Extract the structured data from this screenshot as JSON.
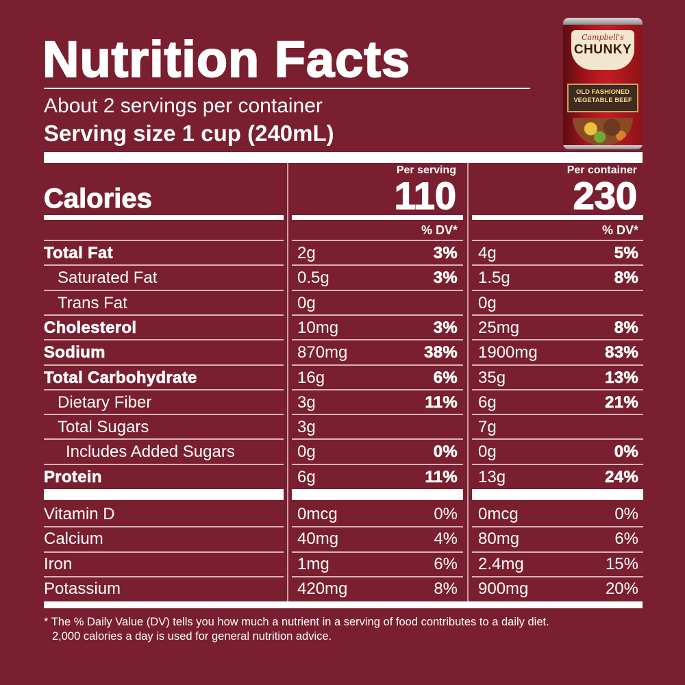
{
  "title": "Nutrition Facts",
  "servings": "About 2 servings per container",
  "serving_size": "Serving size  1 cup (240mL)",
  "product_image": {
    "brand_script": "Campbell's",
    "brand": "CHUNKY",
    "variety": "OLD FASHIONED VEGETABLE BEEF"
  },
  "calories": {
    "label": "Calories",
    "per_serving_label": "Per serving",
    "per_container_label": "Per container",
    "per_serving": "110",
    "per_container": "230"
  },
  "dv_header": "% DV*",
  "nutrients": [
    {
      "name": "Total Fat",
      "style": "heavy",
      "indent": 0,
      "s_amt": "2g",
      "s_dv": "3%",
      "c_amt": "4g",
      "c_dv": "5%"
    },
    {
      "name": "Saturated Fat",
      "style": "normal",
      "indent": 1,
      "s_amt": "0.5g",
      "s_dv": "3%",
      "c_amt": "1.5g",
      "c_dv": "8%"
    },
    {
      "name": "Trans Fat",
      "style": "normal",
      "indent": 1,
      "s_amt": "0g",
      "s_dv": "",
      "c_amt": "0g",
      "c_dv": ""
    },
    {
      "name": "Cholesterol",
      "style": "heavy",
      "indent": 0,
      "s_amt": "10mg",
      "s_dv": "3%",
      "c_amt": "25mg",
      "c_dv": "8%"
    },
    {
      "name": "Sodium",
      "style": "heavy",
      "indent": 0,
      "s_amt": "870mg",
      "s_dv": "38%",
      "c_amt": "1900mg",
      "c_dv": "83%"
    },
    {
      "name": "Total Carbohydrate",
      "style": "heavy",
      "indent": 0,
      "s_amt": "16g",
      "s_dv": "6%",
      "c_amt": "35g",
      "c_dv": "13%"
    },
    {
      "name": "Dietary Fiber",
      "style": "normal",
      "indent": 1,
      "s_amt": "3g",
      "s_dv": "11%",
      "c_amt": "6g",
      "c_dv": "21%"
    },
    {
      "name": "Total Sugars",
      "style": "normal",
      "indent": 1,
      "s_amt": "3g",
      "s_dv": "",
      "c_amt": "7g",
      "c_dv": ""
    },
    {
      "name": "Includes Added Sugars",
      "style": "normal",
      "indent": 2,
      "s_amt": "0g",
      "s_dv": "0%",
      "c_amt": "0g",
      "c_dv": "0%"
    },
    {
      "name": "Protein",
      "style": "heavy",
      "indent": 0,
      "s_amt": "6g",
      "s_dv": "11%",
      "c_amt": "13g",
      "c_dv": "24%"
    }
  ],
  "vitamins": [
    {
      "name": "Vitamin D",
      "s_amt": "0mcg",
      "s_dv": "0%",
      "c_amt": "0mcg",
      "c_dv": "0%"
    },
    {
      "name": "Calcium",
      "s_amt": "40mg",
      "s_dv": "4%",
      "c_amt": "80mg",
      "c_dv": "6%"
    },
    {
      "name": "Iron",
      "s_amt": "1mg",
      "s_dv": "6%",
      "c_amt": "2.4mg",
      "c_dv": "15%"
    },
    {
      "name": "Potassium",
      "s_amt": "420mg",
      "s_dv": "8%",
      "c_amt": "900mg",
      "c_dv": "20%"
    }
  ],
  "footnote_line1": "* The % Daily Value (DV) tells you how much a nutrient in a serving of food contributes to a daily diet.",
  "footnote_line2": "2,000 calories a day is used for general nutrition advice.",
  "colors": {
    "background": "#7a1f2f",
    "text": "#ffffff",
    "rule": "#ffffff"
  }
}
